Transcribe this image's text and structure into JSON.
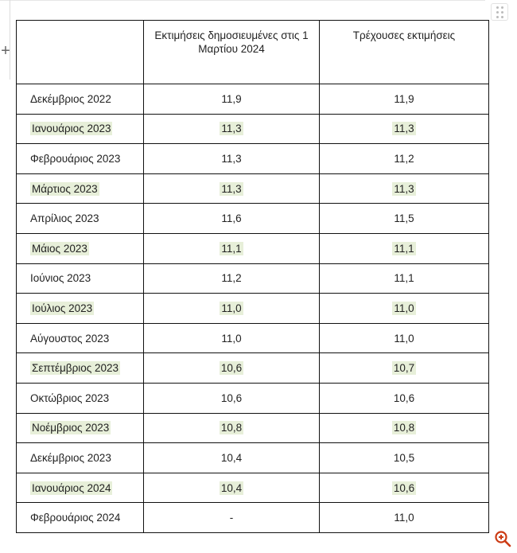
{
  "table": {
    "headers": [
      "",
      "Εκτιμήσεις δημοσιευμένες  στις 1 Μαρτίου 2024",
      "Τρέχουσες εκτιμήσεις"
    ],
    "rows": [
      {
        "month": "Δεκέμβριος 2022",
        "published": "11,9",
        "current": "11,9",
        "highlighted": false
      },
      {
        "month": "Ιανουάριος 2023",
        "published": "11,3",
        "current": "11,3",
        "highlighted": true
      },
      {
        "month": "Φεβρουάριος 2023",
        "published": "11,3",
        "current": "11,2",
        "highlighted": false
      },
      {
        "month": "Μάρτιος 2023",
        "published": "11,3",
        "current": "11,3",
        "highlighted": true
      },
      {
        "month": "Απρίλιος 2023",
        "published": "11,6",
        "current": "11,5",
        "highlighted": false
      },
      {
        "month": "Μάιος 2023",
        "published": "11,1",
        "current": "11,1",
        "highlighted": true
      },
      {
        "month": "Ιούνιος 2023",
        "published": "11,2",
        "current": "11,1",
        "highlighted": false
      },
      {
        "month": "Ιούλιος 2023",
        "published": "11,0",
        "current": "11,0",
        "highlighted": true
      },
      {
        "month": "Αύγουστος 2023",
        "published": "11,0",
        "current": "11,0",
        "highlighted": false
      },
      {
        "month": "Σεπτέμβριος 2023",
        "published": "10,6",
        "current": "10,7",
        "highlighted": true
      },
      {
        "month": "Οκτώβριος 2023",
        "published": "10,6",
        "current": "10,6",
        "highlighted": false
      },
      {
        "month": "Νοέμβριος 2023",
        "published": "10,8",
        "current": "10,8",
        "highlighted": true
      },
      {
        "month": "Δεκέμβριος 2023",
        "published": "10,4",
        "current": "10,5",
        "highlighted": false
      },
      {
        "month": "Ιανουάριος 2024",
        "published": "10,4",
        "current": "10,6",
        "highlighted": true
      },
      {
        "month": "Φεβρουάριος 2024",
        "published": "-",
        "current": "11,0",
        "highlighted": false
      }
    ]
  },
  "controls": {
    "add_label": "+",
    "drag_handle_icon": "drag-handle-icon",
    "zoom_icon": "zoom-in-icon"
  },
  "colors": {
    "highlight": "#e7efd9",
    "border": "#111111",
    "zoom_icon": "#cc3b14"
  }
}
